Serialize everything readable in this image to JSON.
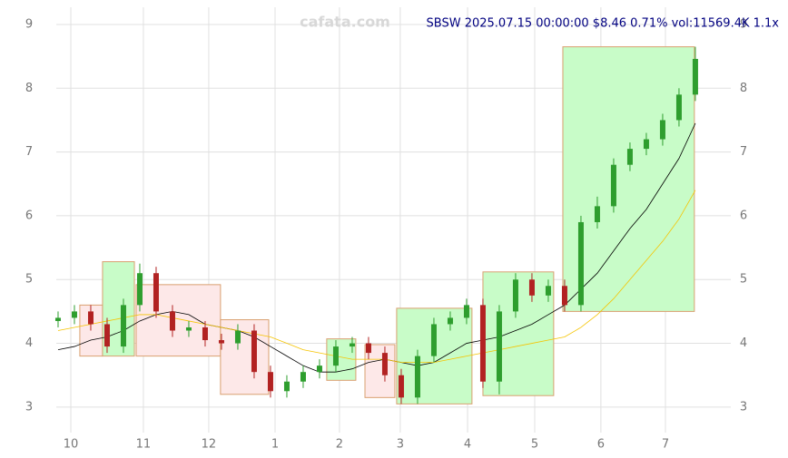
{
  "chart_data": {
    "type": "candlestick",
    "title": "SBSW 2025.07.15 00:00:00 $8.46 0.71% vol:11569.4K 1.1x",
    "watermark": "cafata.com",
    "up_color": "#2e9e2e",
    "down_color": "#b22222",
    "grid": true,
    "xlim": [
      -0.11,
      41.17
    ],
    "xticks": [
      {
        "value": 0.78,
        "label": "10"
      },
      {
        "value": 5.22,
        "label": "11"
      },
      {
        "value": 9.22,
        "label": "12"
      },
      {
        "value": 13.28,
        "label": "1"
      },
      {
        "value": 17.22,
        "label": "2"
      },
      {
        "value": 20.94,
        "label": "3"
      },
      {
        "value": 25.06,
        "label": "4"
      },
      {
        "value": 29.17,
        "label": "5"
      },
      {
        "value": 33.22,
        "label": "6"
      },
      {
        "value": 37.17,
        "label": "7"
      }
    ],
    "ylim": [
      2.6,
      9.27
    ],
    "yticks": [
      3,
      4,
      5,
      6,
      7,
      8,
      9
    ],
    "open": [
      4.35,
      4.4,
      4.5,
      4.3,
      3.95,
      4.6,
      5.1,
      4.5,
      4.2,
      4.25,
      4.05,
      4.0,
      4.2,
      3.55,
      3.25,
      3.4,
      3.55,
      3.65,
      3.95,
      4.0,
      3.85,
      3.5,
      3.15,
      3.8,
      4.3,
      4.4,
      4.6,
      3.4,
      4.5,
      5.0,
      4.75,
      4.9,
      4.6,
      5.9,
      6.15,
      6.8,
      7.05,
      7.2,
      7.5,
      7.9
    ],
    "high": [
      4.5,
      4.6,
      4.6,
      4.4,
      4.7,
      5.25,
      5.2,
      4.6,
      4.35,
      4.35,
      4.15,
      4.3,
      4.3,
      3.65,
      3.5,
      3.65,
      3.75,
      4.05,
      4.1,
      4.1,
      3.95,
      3.6,
      3.9,
      4.4,
      4.5,
      4.7,
      4.7,
      4.6,
      5.1,
      5.1,
      5.0,
      5.0,
      6.0,
      6.3,
      6.9,
      7.15,
      7.3,
      7.6,
      8.0,
      8.65
    ],
    "low": [
      4.25,
      4.3,
      4.2,
      3.85,
      3.85,
      4.5,
      4.4,
      4.1,
      4.1,
      3.95,
      3.9,
      3.9,
      3.45,
      3.15,
      3.15,
      3.3,
      3.45,
      3.55,
      3.85,
      3.75,
      3.4,
      3.05,
      3.05,
      3.7,
      4.2,
      4.3,
      3.3,
      3.2,
      4.4,
      4.65,
      4.65,
      4.5,
      4.5,
      5.8,
      6.05,
      6.7,
      6.95,
      7.1,
      7.4,
      7.8
    ],
    "close": [
      4.4,
      4.5,
      4.3,
      3.95,
      4.6,
      5.1,
      4.5,
      4.2,
      4.25,
      4.05,
      4.0,
      4.2,
      3.55,
      3.25,
      3.4,
      3.55,
      3.65,
      3.95,
      4.0,
      3.85,
      3.5,
      3.15,
      3.8,
      4.3,
      4.4,
      4.6,
      3.4,
      4.5,
      5.0,
      4.75,
      4.9,
      4.6,
      5.9,
      6.15,
      6.8,
      7.05,
      7.2,
      7.5,
      7.9,
      8.46
    ],
    "lines": [
      {
        "color": "#000000",
        "values": [
          3.9,
          3.95,
          4.05,
          4.1,
          4.2,
          4.35,
          4.45,
          4.5,
          4.45,
          4.3,
          4.25,
          4.2,
          4.1,
          3.95,
          3.8,
          3.65,
          3.55,
          3.55,
          3.6,
          3.7,
          3.75,
          3.7,
          3.65,
          3.7,
          3.85,
          4.0,
          4.05,
          4.1,
          4.2,
          4.3,
          4.45,
          4.6,
          4.85,
          5.1,
          5.45,
          5.8,
          6.1,
          6.5,
          6.9,
          7.45
        ]
      },
      {
        "color": "#f5c400",
        "values": [
          4.2,
          4.25,
          4.3,
          4.35,
          4.4,
          4.45,
          4.45,
          4.4,
          4.35,
          4.3,
          4.25,
          4.2,
          4.15,
          4.1,
          4.0,
          3.9,
          3.85,
          3.8,
          3.75,
          3.75,
          3.75,
          3.7,
          3.7,
          3.7,
          3.75,
          3.8,
          3.85,
          3.9,
          3.95,
          4.0,
          4.05,
          4.1,
          4.25,
          4.45,
          4.7,
          5.0,
          5.3,
          5.6,
          5.95,
          6.4
        ]
      }
    ],
    "zones": [
      {
        "start": 1.33,
        "end": 2.72,
        "low": 3.8,
        "high": 4.6,
        "color": "#fde8e8"
      },
      {
        "start": 2.72,
        "end": 4.67,
        "low": 3.8,
        "high": 5.28,
        "color": "#c8fcc8"
      },
      {
        "start": 4.78,
        "end": 9.94,
        "low": 3.8,
        "high": 4.92,
        "color": "#fde8e8"
      },
      {
        "start": 9.94,
        "end": 12.89,
        "low": 3.2,
        "high": 4.37,
        "color": "#fde8e8"
      },
      {
        "start": 16.44,
        "end": 18.22,
        "low": 3.42,
        "high": 4.07,
        "color": "#c8fcc8"
      },
      {
        "start": 18.78,
        "end": 20.61,
        "low": 3.15,
        "high": 3.98,
        "color": "#fde8e8"
      },
      {
        "start": 20.72,
        "end": 25.33,
        "low": 3.05,
        "high": 4.55,
        "color": "#c8fcc8"
      },
      {
        "start": 26.0,
        "end": 30.33,
        "low": 3.18,
        "high": 5.12,
        "color": "#c8fcc8"
      },
      {
        "start": 30.89,
        "end": 38.94,
        "low": 4.5,
        "high": 8.65,
        "color": "#c8fcc8"
      }
    ]
  }
}
